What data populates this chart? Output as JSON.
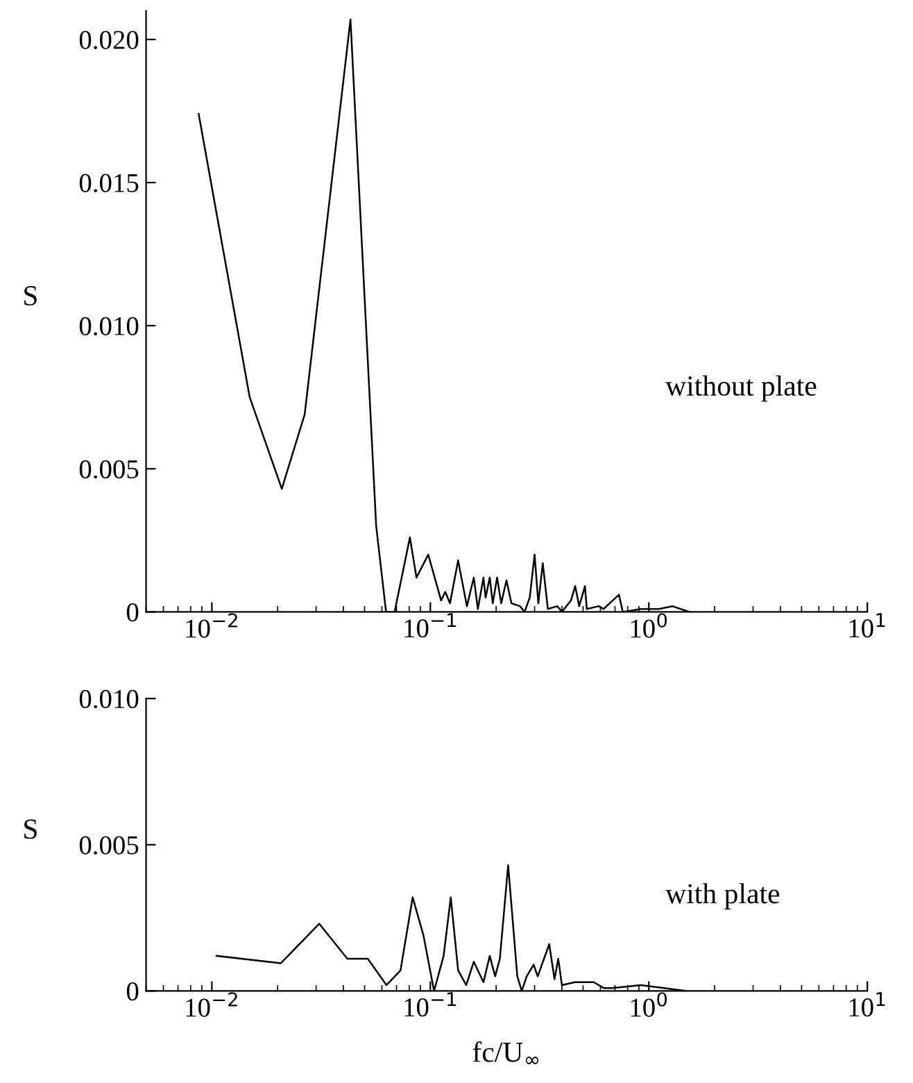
{
  "chart_data": [
    {
      "type": "line",
      "ylabel": "S",
      "annotations": [
        "without plate"
      ],
      "series": [
        {
          "color": "#000000",
          "x": [
            0.0087,
            0.0149,
            0.0209,
            0.0266,
            0.0431,
            0.0565,
            0.0627,
            0.0686,
            0.0806,
            0.0864,
            0.0978,
            0.112,
            0.117,
            0.123,
            0.134,
            0.147,
            0.158,
            0.165,
            0.175,
            0.179,
            0.187,
            0.193,
            0.202,
            0.211,
            0.223,
            0.235,
            0.257,
            0.27,
            0.285,
            0.3,
            0.312,
            0.327,
            0.345,
            0.381,
            0.4,
            0.44,
            0.46,
            0.48,
            0.51,
            0.52,
            0.59,
            0.62,
            0.73,
            0.76,
            0.92,
            1.11,
            1.28,
            1.53
          ],
          "values": [
            0.0174,
            0.0075,
            0.0043,
            0.0069,
            0.0207,
            0.003,
            0.0,
            0.0,
            0.0026,
            0.0012,
            0.002,
            0.0004,
            0.0007,
            0.0003,
            0.0018,
            0.0002,
            0.0012,
            0.0001,
            0.0012,
            0.0005,
            0.0012,
            0.0003,
            0.0012,
            0.0003,
            0.0011,
            0.0003,
            0.0002,
            0.0,
            0.0005,
            0.002,
            0.0003,
            0.0017,
            0.0001,
            0.0002,
            0.0,
            0.0004,
            0.0009,
            0.0002,
            0.0009,
            0.0001,
            0.0002,
            0.0001,
            0.0006,
            0.0,
            0.0001,
            0.0001,
            0.0002,
            0.0
          ]
        }
      ],
      "log": "x",
      "xlim": [
        0.005,
        10
      ],
      "ylim": [
        0,
        0.021
      ],
      "xticks": [
        {
          "value": 0.01,
          "label": "10$^{−2}$"
        },
        {
          "value": 0.1,
          "label": "10$^{−1}$"
        },
        {
          "value": 1,
          "label": "10$^{0}$"
        },
        {
          "value": 10,
          "label": "10$^{1}$"
        }
      ],
      "yticks": [
        {
          "value": 0,
          "label": "0"
        },
        {
          "value": 0.005,
          "label": "0.005"
        },
        {
          "value": 0.01,
          "label": "0.010"
        },
        {
          "value": 0.015,
          "label": "0.015"
        },
        {
          "value": 0.02,
          "label": "0.020"
        }
      ],
      "grid": false,
      "legend": false,
      "marker": "none",
      "line_style": "solid"
    },
    {
      "type": "line",
      "ylabel": "S",
      "xlabel": "fc/U$_{∞}$",
      "annotations": [
        "with plate"
      ],
      "series": [
        {
          "color": "#000000",
          "x": [
            0.0105,
            0.0207,
            0.031,
            0.0417,
            0.0517,
            0.063,
            0.073,
            0.083,
            0.093,
            0.104,
            0.115,
            0.124,
            0.134,
            0.146,
            0.158,
            0.175,
            0.187,
            0.198,
            0.208,
            0.227,
            0.25,
            0.262,
            0.276,
            0.297,
            0.31,
            0.35,
            0.37,
            0.385,
            0.4,
            0.46,
            0.51,
            0.56,
            0.62,
            0.68,
            0.92,
            1.48
          ],
          "values": [
            0.0012,
            0.00095,
            0.0023,
            0.0011,
            0.0011,
            0.0002,
            0.0007,
            0.0032,
            0.0019,
            0.0,
            0.0012,
            0.0032,
            0.0007,
            0.0002,
            0.001,
            0.0003,
            0.0012,
            0.0005,
            0.0011,
            0.0043,
            0.0005,
            0.0,
            0.0005,
            0.0009,
            0.0005,
            0.0016,
            0.0004,
            0.0011,
            0.0002,
            0.0003,
            0.0003,
            0.0003,
            0.0001,
            0.0001,
            0.0002,
            0.0
          ]
        }
      ],
      "log": "x",
      "xlim": [
        0.005,
        10
      ],
      "ylim": [
        0,
        0.01
      ],
      "xticks": [
        {
          "value": 0.01,
          "label": "10$^{−2}$"
        },
        {
          "value": 0.1,
          "label": "10$^{−1}$"
        },
        {
          "value": 1,
          "label": "10$^{0}$"
        },
        {
          "value": 10,
          "label": "10$^{1}$"
        }
      ],
      "yticks": [
        {
          "value": 0,
          "label": "0"
        },
        {
          "value": 0.005,
          "label": "0.005"
        },
        {
          "value": 0.01,
          "label": "0.010"
        }
      ],
      "grid": false,
      "legend": false,
      "marker": "none",
      "line_style": "solid"
    }
  ]
}
